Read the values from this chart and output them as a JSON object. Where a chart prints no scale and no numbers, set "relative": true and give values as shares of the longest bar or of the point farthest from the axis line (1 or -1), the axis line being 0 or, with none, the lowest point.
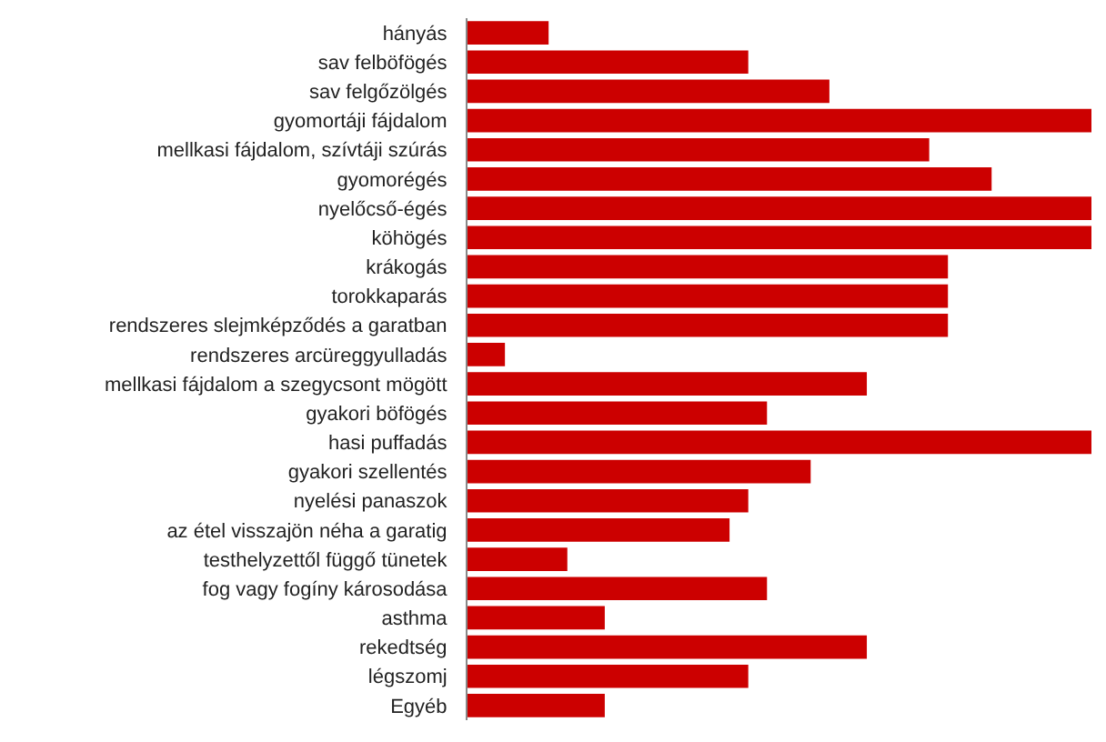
{
  "chart_data": {
    "type": "bar",
    "orientation": "horizontal",
    "relative": true,
    "categories": [
      "hányás",
      "sav felböfögés",
      "sav felgőzölgés",
      "gyomortáji fájdalom",
      "mellkasi fájdalom, szívtáji szúrás",
      "gyomorégés",
      "nyelőcső-égés",
      "köhögés",
      "krákogás",
      "torokkaparás",
      "rendszeres slejmképződés a garatban",
      "rendszeres arcüreggyulladás",
      "mellkasi fájdalom a szegycsont mögött",
      "gyakori böfögés",
      "hasi puffadás",
      "gyakori szellentés",
      "nyelési panaszok",
      "az étel visszajön néha a garatig",
      "testhelyzettől függő tünetek",
      "fog vagy fogíny károsodása",
      "asthma",
      "rekedtség",
      "légszomj",
      "Egyéb"
    ],
    "series": [
      {
        "color": "#cc0000",
        "values": [
          0.13,
          0.45,
          0.58,
          1,
          0.74,
          0.84,
          1,
          1,
          0.77,
          0.77,
          0.77,
          0.06,
          0.64,
          0.48,
          1,
          0.55,
          0.45,
          0.42,
          0.16,
          0.48,
          0.22,
          0.64,
          0.45,
          0.22
        ]
      }
    ]
  }
}
